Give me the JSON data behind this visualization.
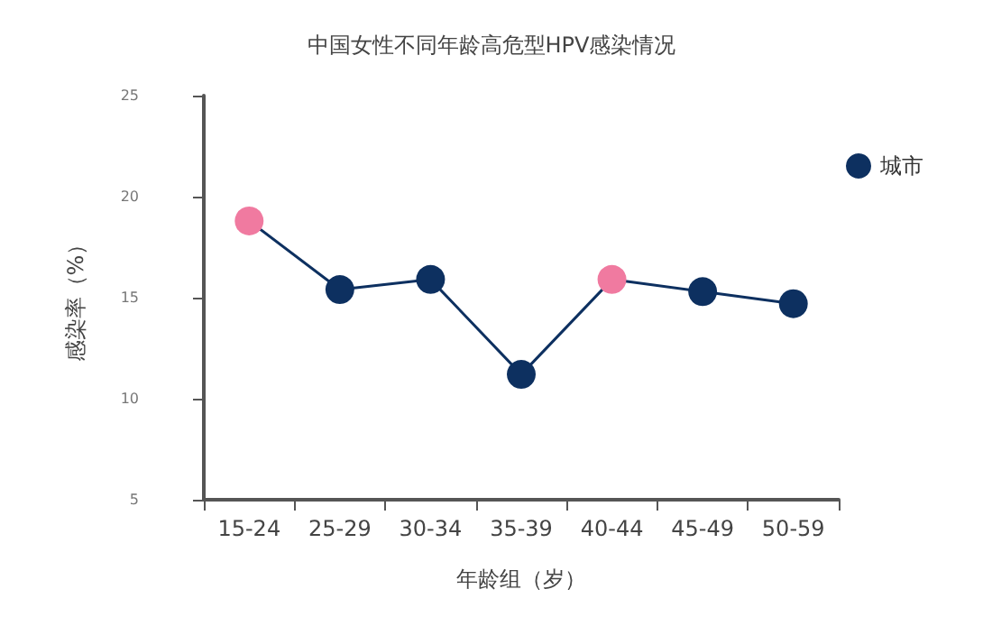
{
  "chart_data": {
    "type": "line",
    "title": "中国女性不同年龄高危型HPV感染情况",
    "xlabel": "年龄组（岁）",
    "ylabel": "感染率（%）",
    "categories": [
      "15-24",
      "25-29",
      "30-34",
      "35-39",
      "40-44",
      "45-49",
      "50-59"
    ],
    "series": [
      {
        "name": "城市",
        "color": "#0d3060",
        "colors": [
          "#f07aa0",
          "#0d3060",
          "#0d3060",
          "#0d3060",
          "#f07aa0",
          "#0d3060",
          "#0d3060"
        ],
        "values": [
          18.8,
          15.4,
          15.9,
          11.2,
          15.9,
          15.3,
          14.7
        ]
      }
    ],
    "ylim": [
      5,
      25
    ],
    "yticks": [
      5,
      10,
      15,
      20,
      25
    ],
    "grid": false,
    "legend": "right",
    "marker": "circle",
    "line_style": "solid"
  }
}
